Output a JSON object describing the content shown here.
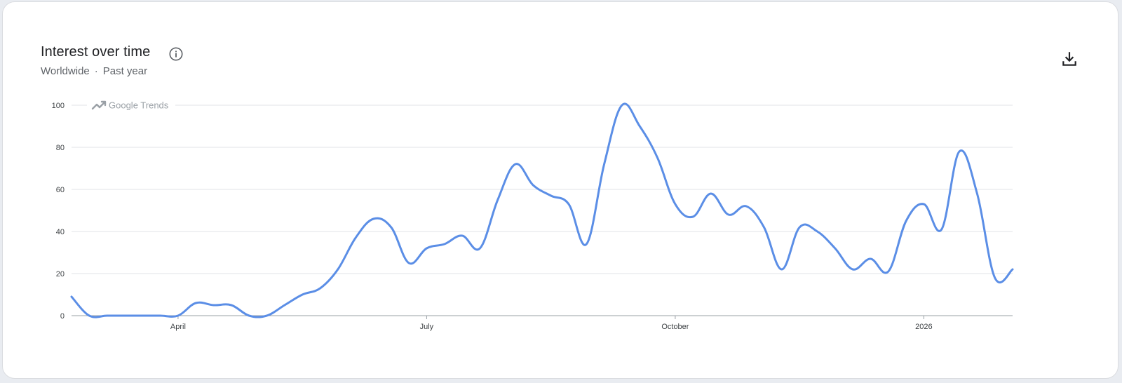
{
  "header": {
    "title": "Interest over time",
    "location": "Worldwide",
    "separator": "·",
    "period": "Past year"
  },
  "icons": {
    "info": "info-icon",
    "download": "download-icon",
    "trend": "trend-arrow-icon"
  },
  "watermark": "Google Trends",
  "colors": {
    "line": "#5b8ee6",
    "grid": "#e0e3e7",
    "axis": "#9aa0a6",
    "watermark": "#9aa0a6"
  },
  "chart_data": {
    "type": "line",
    "title": "Interest over time",
    "xlabel": "",
    "ylabel": "",
    "ylim": [
      0,
      100
    ],
    "yticks": [
      0,
      20,
      40,
      60,
      80,
      100
    ],
    "xticks": [
      {
        "label": "April",
        "index": 6
      },
      {
        "label": "July",
        "index": 20
      },
      {
        "label": "October",
        "index": 34
      },
      {
        "label": "2026",
        "index": 48
      }
    ],
    "grid": true,
    "legend": "none",
    "series": [
      {
        "name": "",
        "values": [
          9,
          0,
          0,
          0,
          0,
          0,
          0,
          6,
          5,
          5,
          0,
          0,
          5,
          10,
          13,
          22,
          37,
          46,
          42,
          25,
          32,
          34,
          38,
          32,
          55,
          72,
          62,
          57,
          53,
          34,
          72,
          100,
          90,
          75,
          53,
          47,
          58,
          48,
          52,
          42,
          22,
          42,
          40,
          32,
          22,
          27,
          21,
          45,
          53,
          41,
          78,
          58,
          18,
          22
        ]
      }
    ]
  }
}
